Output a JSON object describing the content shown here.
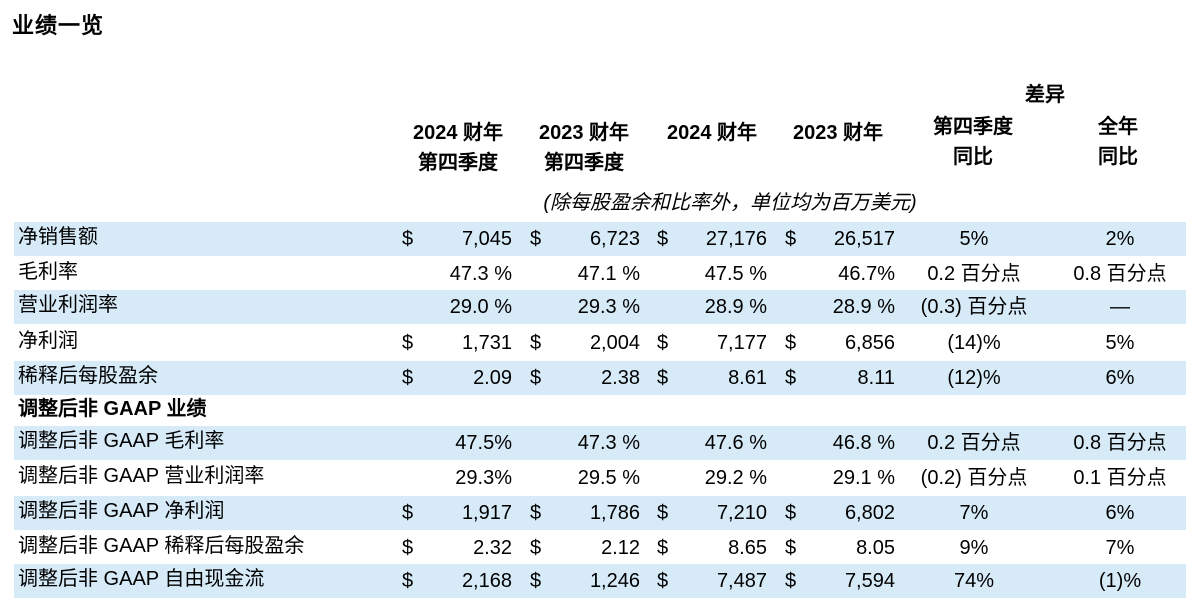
{
  "title": "业绩一览",
  "header": {
    "diff_group": "差异",
    "col1": [
      "2024 财年",
      "第四季度"
    ],
    "col2": [
      "2023 财年",
      "第四季度"
    ],
    "col3": "2024 财年",
    "col4": "2023 财年",
    "col5": [
      "第四季度",
      "同比"
    ],
    "col6": [
      "全年",
      "同比"
    ]
  },
  "unit_note": "(除每股盈余和比率外，单位均为百万美元)",
  "rows": [
    {
      "label": "净销售额",
      "d1": "$",
      "v1": "7,045",
      "d2": "$",
      "v2": "6,723",
      "d3": "$",
      "v3": "27,176",
      "d4": "$",
      "v4": "26,517",
      "q": "5%",
      "y": "2%"
    },
    {
      "label": "毛利率",
      "d1": "",
      "v1": "47.3 %",
      "d2": "",
      "v2": "47.1 %",
      "d3": "",
      "v3": "47.5 %",
      "d4": "",
      "v4": "46.7%",
      "q": "0.2 百分点",
      "y": "0.8 百分点"
    },
    {
      "label": "营业利润率",
      "d1": "",
      "v1": "29.0 %",
      "d2": "",
      "v2": "29.3 %",
      "d3": "",
      "v3": "28.9 %",
      "d4": "",
      "v4": "28.9 %",
      "q": "(0.3) 百分点",
      "y": "—"
    },
    {
      "label": "净利润",
      "d1": "$",
      "v1": "1,731",
      "d2": "$",
      "v2": "2,004",
      "d3": "$",
      "v3": "7,177",
      "d4": "$",
      "v4": "6,856",
      "q": "(14)%",
      "y": "5%"
    },
    {
      "label": "稀释后每股盈余",
      "d1": "$",
      "v1": "2.09",
      "d2": "$",
      "v2": "2.38",
      "d3": "$",
      "v3": "8.61",
      "d4": "$",
      "v4": "8.11",
      "q": "(12)%",
      "y": "6%"
    },
    {
      "label": "调整后非 GAAP 业绩",
      "d1": "",
      "v1": "",
      "d2": "",
      "v2": "",
      "d3": "",
      "v3": "",
      "d4": "",
      "v4": "",
      "q": "",
      "y": ""
    },
    {
      "label": "调整后非 GAAP 毛利率",
      "d1": "",
      "v1": "47.5%",
      "d2": "",
      "v2": "47.3 %",
      "d3": "",
      "v3": "47.6 %",
      "d4": "",
      "v4": "46.8 %",
      "q": "0.2 百分点",
      "y": "0.8 百分点"
    },
    {
      "label": "调整后非 GAAP 营业利润率",
      "d1": "",
      "v1": "29.3%",
      "d2": "",
      "v2": "29.5 %",
      "d3": "",
      "v3": "29.2 %",
      "d4": "",
      "v4": "29.1 %",
      "q": "(0.2) 百分点",
      "y": "0.1 百分点"
    },
    {
      "label": "调整后非 GAAP 净利润",
      "d1": "$",
      "v1": "1,917",
      "d2": "$",
      "v2": "1,786",
      "d3": "$",
      "v3": "7,210",
      "d4": "$",
      "v4": "6,802",
      "q": "7%",
      "y": "6%"
    },
    {
      "label": "调整后非 GAAP 稀释后每股盈余",
      "d1": "$",
      "v1": "2.32",
      "d2": "$",
      "v2": "2.12",
      "d3": "$",
      "v3": "8.65",
      "d4": "$",
      "v4": "8.05",
      "q": "9%",
      "y": "7%"
    },
    {
      "label": "调整后非 GAAP 自由现金流",
      "d1": "$",
      "v1": "2,168",
      "d2": "$",
      "v2": "1,246",
      "d3": "$",
      "v3": "7,487",
      "d4": "$",
      "v4": "7,594",
      "q": "74%",
      "y": "(1)%"
    }
  ]
}
